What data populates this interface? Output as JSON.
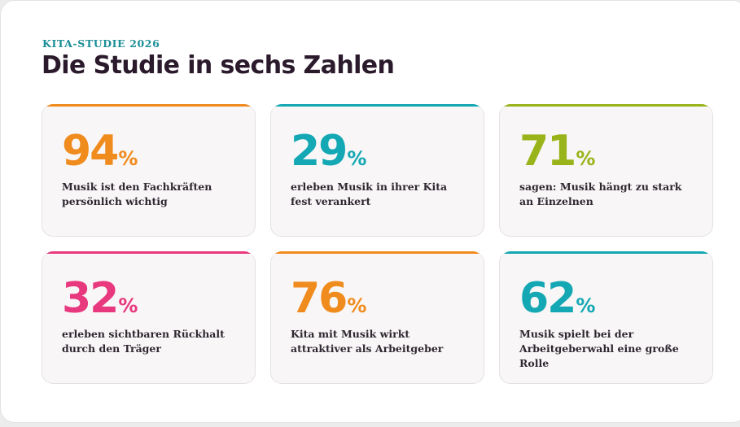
{
  "header": {
    "eyebrow": "KITA-STUDIE 2026",
    "title": "Die Studie in sechs Zahlen"
  },
  "colors": {
    "orange": "#f08b1d",
    "teal": "#14a8b4",
    "lime": "#99b41a",
    "pink": "#e8387e"
  },
  "stats": [
    {
      "value": "94",
      "unit": "%",
      "label": "Musik ist den Fachkräften persönlich wichtig",
      "color": "#f08b1d"
    },
    {
      "value": "29",
      "unit": "%",
      "label": "erleben Musik in ihrer Kita fest verankert",
      "color": "#14a8b4"
    },
    {
      "value": "71",
      "unit": "%",
      "label": "sagen: Musik hängt zu stark an Einzelnen",
      "color": "#99b41a"
    },
    {
      "value": "32",
      "unit": "%",
      "label": "erleben sichtbaren Rückhalt durch den Träger",
      "color": "#e8387e"
    },
    {
      "value": "76",
      "unit": "%",
      "label": "Kita mit Musik wirkt attraktiver als Arbeitgeber",
      "color": "#f08b1d"
    },
    {
      "value": "62",
      "unit": "%",
      "label": "Musik spielt bei der Arbeitgeberwahl eine große Rolle",
      "color": "#14a8b4"
    }
  ]
}
